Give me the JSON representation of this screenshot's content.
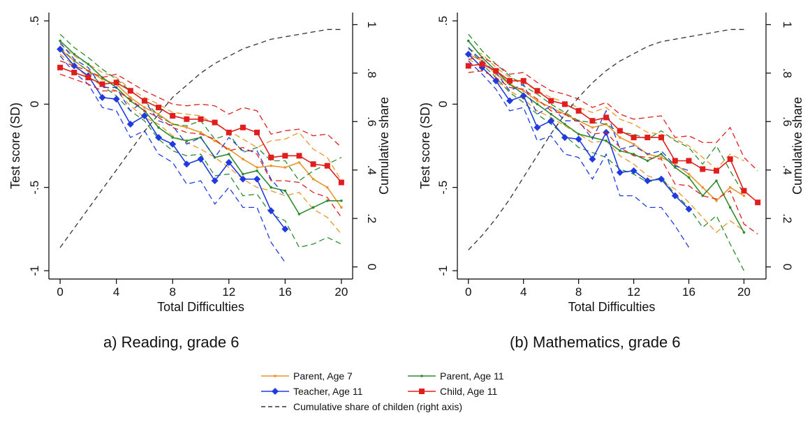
{
  "chart_data": [
    {
      "type": "line",
      "caption": "a) Reading, grade 6",
      "xlabel": "Total Difficulties",
      "ylabel": "Test score (SD)",
      "y2label": "Cumulative share",
      "xlim": [
        -0.8,
        20.8
      ],
      "ylim": [
        -1.05,
        0.55
      ],
      "y2lim": [
        -0.05,
        1.05
      ],
      "xticks": [
        0,
        4,
        8,
        12,
        16,
        20
      ],
      "yticks": [
        -1,
        -0.5,
        0,
        0.5
      ],
      "ytick_labels": [
        "-1",
        "-.5",
        "0",
        ".5"
      ],
      "y2ticks": [
        0,
        0.2,
        0.4,
        0.6,
        0.8,
        1
      ],
      "y2tick_labels": [
        "0",
        ".2",
        ".4",
        ".6",
        ".8",
        "1"
      ],
      "series": [
        {
          "name": "Parent, Age 7",
          "color": "#e8952a",
          "marker": "dot",
          "x": [
            0,
            1,
            2,
            3,
            4,
            5,
            6,
            7,
            8,
            9,
            10,
            11,
            12,
            13,
            14,
            15,
            16,
            17,
            18,
            19,
            20
          ],
          "y": [
            0.33,
            0.26,
            0.2,
            0.15,
            0.12,
            0.04,
            -0.02,
            -0.06,
            -0.12,
            -0.14,
            -0.17,
            -0.22,
            -0.27,
            -0.33,
            -0.38,
            -0.37,
            -0.38,
            -0.35,
            -0.45,
            -0.5,
            -0.62
          ],
          "ci_low": [
            0.3,
            0.23,
            0.16,
            0.11,
            0.08,
            -0.01,
            -0.08,
            -0.12,
            -0.19,
            -0.23,
            -0.27,
            -0.32,
            -0.38,
            -0.45,
            -0.5,
            -0.52,
            -0.55,
            -0.53,
            -0.63,
            -0.68,
            -0.78
          ],
          "ci_high": [
            0.36,
            0.29,
            0.24,
            0.19,
            0.16,
            0.09,
            0.04,
            0.0,
            -0.05,
            -0.06,
            -0.07,
            -0.12,
            -0.16,
            -0.21,
            -0.26,
            -0.22,
            -0.21,
            -0.17,
            -0.27,
            -0.32,
            -0.46
          ]
        },
        {
          "name": "Parent, Age 11",
          "color": "#2e8b2e",
          "marker": "dot",
          "x": [
            0,
            1,
            2,
            3,
            4,
            5,
            6,
            7,
            8,
            9,
            10,
            11,
            12,
            13,
            14,
            15,
            16,
            17,
            18,
            19,
            20
          ],
          "y": [
            0.38,
            0.3,
            0.24,
            0.16,
            0.1,
            0.02,
            -0.04,
            -0.14,
            -0.2,
            -0.22,
            -0.2,
            -0.32,
            -0.3,
            -0.42,
            -0.4,
            -0.5,
            -0.52,
            -0.66,
            -0.62,
            -0.58,
            -0.58
          ],
          "ci_low": [
            0.34,
            0.26,
            0.2,
            0.11,
            0.05,
            -0.04,
            -0.1,
            -0.21,
            -0.28,
            -0.31,
            -0.3,
            -0.43,
            -0.42,
            -0.55,
            -0.54,
            -0.66,
            -0.7,
            -0.86,
            -0.84,
            -0.8,
            -0.84
          ],
          "ci_high": [
            0.42,
            0.34,
            0.28,
            0.21,
            0.15,
            0.08,
            0.02,
            -0.07,
            -0.12,
            -0.13,
            -0.1,
            -0.21,
            -0.18,
            -0.29,
            -0.26,
            -0.34,
            -0.34,
            -0.46,
            -0.4,
            -0.36,
            -0.32
          ]
        },
        {
          "name": "Teacher, Age 11",
          "color": "#1f3be0",
          "marker": "diamond",
          "x": [
            0,
            1,
            2,
            3,
            4,
            5,
            6,
            7,
            8,
            9,
            10,
            11,
            12,
            13,
            14,
            15,
            16
          ],
          "y": [
            0.33,
            0.23,
            0.17,
            0.04,
            0.03,
            -0.12,
            -0.07,
            -0.2,
            -0.24,
            -0.36,
            -0.33,
            -0.46,
            -0.35,
            -0.45,
            -0.45,
            -0.64,
            -0.75
          ],
          "ci_low": [
            0.29,
            0.19,
            0.12,
            -0.02,
            -0.04,
            -0.2,
            -0.16,
            -0.3,
            -0.35,
            -0.48,
            -0.46,
            -0.6,
            -0.5,
            -0.62,
            -0.62,
            -0.83,
            -0.95
          ],
          "ci_high": [
            0.37,
            0.27,
            0.22,
            0.1,
            0.1,
            -0.04,
            0.02,
            -0.1,
            -0.13,
            -0.24,
            -0.2,
            -0.32,
            -0.2,
            -0.28,
            -0.28,
            -0.45,
            -0.55
          ]
        },
        {
          "name": "Child, Age 11",
          "color": "#e01e1e",
          "marker": "square",
          "x": [
            0,
            1,
            2,
            3,
            4,
            5,
            6,
            7,
            8,
            9,
            10,
            11,
            12,
            13,
            14,
            15,
            16,
            17,
            18,
            19,
            20
          ],
          "y": [
            0.22,
            0.19,
            0.16,
            0.12,
            0.13,
            0.08,
            0.02,
            -0.02,
            -0.07,
            -0.09,
            -0.09,
            -0.11,
            -0.17,
            -0.14,
            -0.17,
            -0.32,
            -0.31,
            -0.31,
            -0.36,
            -0.37,
            -0.47
          ],
          "ci_low": [
            0.18,
            0.15,
            0.12,
            0.08,
            0.08,
            0.03,
            -0.04,
            -0.08,
            -0.14,
            -0.17,
            -0.18,
            -0.21,
            -0.28,
            -0.26,
            -0.3,
            -0.46,
            -0.46,
            -0.47,
            -0.53,
            -0.56,
            -0.68
          ],
          "ci_high": [
            0.26,
            0.23,
            0.2,
            0.16,
            0.18,
            0.13,
            0.08,
            0.04,
            0.0,
            -0.01,
            0.0,
            -0.01,
            -0.06,
            -0.02,
            -0.04,
            -0.18,
            -0.16,
            -0.15,
            -0.19,
            -0.18,
            -0.26
          ]
        },
        {
          "name": "Cumulative share of childen (right axis)",
          "color": "#333333",
          "axis": "right",
          "style": "dash",
          "x": [
            0,
            1,
            2,
            3,
            4,
            5,
            6,
            7,
            8,
            9,
            10,
            11,
            12,
            13,
            14,
            15,
            16,
            17,
            18,
            19,
            20
          ],
          "y": [
            0.08,
            0.16,
            0.24,
            0.32,
            0.4,
            0.48,
            0.56,
            0.63,
            0.7,
            0.75,
            0.8,
            0.84,
            0.87,
            0.9,
            0.92,
            0.94,
            0.95,
            0.96,
            0.97,
            0.98,
            0.98
          ]
        }
      ]
    },
    {
      "type": "line",
      "caption": "(b) Mathematics, grade 6",
      "xlabel": "Total Difficulties",
      "ylabel": "Test score (SD)",
      "y2label": "Cumulative share",
      "xlim": [
        -0.8,
        21.6
      ],
      "ylim": [
        -1.05,
        0.55
      ],
      "y2lim": [
        -0.05,
        1.05
      ],
      "xticks": [
        0,
        4,
        8,
        12,
        16,
        20
      ],
      "yticks": [
        -1,
        -0.5,
        0,
        0.5
      ],
      "ytick_labels": [
        "-1",
        "-.5",
        "0",
        ".5"
      ],
      "y2ticks": [
        0,
        0.2,
        0.4,
        0.6,
        0.8,
        1
      ],
      "y2tick_labels": [
        "0",
        ".2",
        ".4",
        ".6",
        ".8",
        "1"
      ],
      "series": [
        {
          "name": "Parent, Age 7",
          "color": "#e8952a",
          "marker": "dot",
          "x": [
            0,
            1,
            2,
            3,
            4,
            5,
            6,
            7,
            8,
            9,
            10,
            11,
            12,
            13,
            14,
            15,
            16,
            17,
            18,
            19,
            20
          ],
          "y": [
            0.3,
            0.26,
            0.18,
            0.12,
            0.08,
            0.02,
            -0.02,
            -0.06,
            -0.1,
            -0.14,
            -0.12,
            -0.2,
            -0.24,
            -0.3,
            -0.32,
            -0.36,
            -0.42,
            -0.5,
            -0.58,
            -0.5,
            -0.55
          ],
          "ci_low": [
            0.27,
            0.22,
            0.14,
            0.08,
            0.03,
            -0.04,
            -0.08,
            -0.13,
            -0.18,
            -0.23,
            -0.22,
            -0.31,
            -0.36,
            -0.43,
            -0.46,
            -0.51,
            -0.59,
            -0.68,
            -0.77,
            -0.7,
            -0.76
          ],
          "ci_high": [
            0.33,
            0.3,
            0.22,
            0.16,
            0.13,
            0.08,
            0.04,
            0.01,
            -0.02,
            -0.05,
            -0.02,
            -0.09,
            -0.12,
            -0.17,
            -0.18,
            -0.21,
            -0.25,
            -0.32,
            -0.39,
            -0.3,
            -0.34
          ]
        },
        {
          "name": "Parent, Age 11",
          "color": "#2e8b2e",
          "marker": "dot",
          "x": [
            0,
            1,
            2,
            3,
            4,
            5,
            6,
            7,
            8,
            9,
            10,
            11,
            12,
            13,
            14,
            15,
            16,
            17,
            18,
            19,
            20
          ],
          "y": [
            0.38,
            0.28,
            0.2,
            0.12,
            0.06,
            0.0,
            -0.06,
            -0.12,
            -0.18,
            -0.2,
            -0.22,
            -0.28,
            -0.3,
            -0.34,
            -0.3,
            -0.38,
            -0.44,
            -0.55,
            -0.46,
            -0.62,
            -0.77
          ],
          "ci_low": [
            0.34,
            0.24,
            0.16,
            0.07,
            0.01,
            -0.06,
            -0.12,
            -0.19,
            -0.26,
            -0.29,
            -0.32,
            -0.39,
            -0.42,
            -0.47,
            -0.44,
            -0.54,
            -0.62,
            -0.74,
            -0.67,
            -0.84,
            -1.0
          ],
          "ci_high": [
            0.42,
            0.32,
            0.24,
            0.17,
            0.11,
            0.06,
            0.0,
            -0.05,
            -0.1,
            -0.11,
            -0.12,
            -0.17,
            -0.18,
            -0.21,
            -0.16,
            -0.22,
            -0.26,
            -0.36,
            -0.25,
            -0.4,
            -0.54
          ]
        },
        {
          "name": "Teacher, Age 11",
          "color": "#1f3be0",
          "marker": "diamond",
          "x": [
            0,
            1,
            2,
            3,
            4,
            5,
            6,
            7,
            8,
            9,
            10,
            11,
            12,
            13,
            14,
            15,
            16
          ],
          "y": [
            0.3,
            0.22,
            0.14,
            0.02,
            0.05,
            -0.14,
            -0.1,
            -0.2,
            -0.21,
            -0.33,
            -0.17,
            -0.41,
            -0.4,
            -0.46,
            -0.45,
            -0.55,
            -0.63
          ],
          "ci_low": [
            0.26,
            0.18,
            0.09,
            -0.04,
            -0.02,
            -0.22,
            -0.19,
            -0.3,
            -0.32,
            -0.45,
            -0.3,
            -0.55,
            -0.55,
            -0.62,
            -0.62,
            -0.73,
            -0.86
          ],
          "ci_high": [
            0.34,
            0.26,
            0.19,
            0.08,
            0.12,
            -0.06,
            -0.01,
            -0.1,
            -0.1,
            -0.21,
            -0.04,
            -0.27,
            -0.25,
            -0.3,
            -0.28,
            -0.37,
            -0.4
          ]
        },
        {
          "name": "Child, Age 11",
          "color": "#e01e1e",
          "marker": "square",
          "x": [
            0,
            1,
            2,
            3,
            4,
            5,
            6,
            7,
            8,
            9,
            10,
            11,
            12,
            13,
            14,
            15,
            16,
            17,
            18,
            19,
            20,
            21
          ],
          "y": [
            0.23,
            0.24,
            0.2,
            0.14,
            0.14,
            0.08,
            0.02,
            0.0,
            -0.04,
            -0.1,
            -0.08,
            -0.16,
            -0.2,
            -0.2,
            -0.2,
            -0.34,
            -0.34,
            -0.39,
            -0.4,
            -0.33,
            -0.52,
            -0.59
          ],
          "ci_low": [
            0.19,
            0.2,
            0.16,
            0.1,
            0.09,
            0.03,
            -0.04,
            -0.06,
            -0.11,
            -0.18,
            -0.17,
            -0.26,
            -0.31,
            -0.32,
            -0.33,
            -0.48,
            -0.49,
            -0.55,
            -0.57,
            -0.52,
            -0.72,
            -0.78
          ],
          "ci_high": [
            0.27,
            0.28,
            0.24,
            0.18,
            0.19,
            0.13,
            0.08,
            0.06,
            0.03,
            -0.02,
            0.01,
            -0.06,
            -0.09,
            -0.08,
            -0.07,
            -0.2,
            -0.19,
            -0.23,
            -0.23,
            -0.14,
            -0.32,
            -0.4
          ]
        },
        {
          "name": "Cumulative share of childen (right axis)",
          "color": "#333333",
          "axis": "right",
          "style": "dash",
          "x": [
            0,
            1,
            2,
            3,
            4,
            5,
            6,
            7,
            8,
            9,
            10,
            11,
            12,
            13,
            14,
            15,
            16,
            17,
            18,
            19,
            20
          ],
          "y": [
            0.07,
            0.13,
            0.2,
            0.28,
            0.37,
            0.46,
            0.55,
            0.63,
            0.7,
            0.76,
            0.81,
            0.85,
            0.88,
            0.91,
            0.93,
            0.94,
            0.95,
            0.96,
            0.97,
            0.98,
            0.98
          ]
        }
      ]
    }
  ],
  "legend": {
    "items": [
      {
        "label": "Parent, Age 7",
        "color": "#e8952a",
        "marker": "dot",
        "style": "solid"
      },
      {
        "label": "Parent, Age 11",
        "color": "#2e8b2e",
        "marker": "dot",
        "style": "solid"
      },
      {
        "label": "Teacher, Age 11",
        "color": "#1f3be0",
        "marker": "diamond",
        "style": "solid"
      },
      {
        "label": "Child, Age 11",
        "color": "#e01e1e",
        "marker": "square",
        "style": "solid"
      },
      {
        "label": "Cumulative share of childen (right axis)",
        "color": "#333333",
        "marker": "none",
        "style": "dash"
      }
    ]
  }
}
